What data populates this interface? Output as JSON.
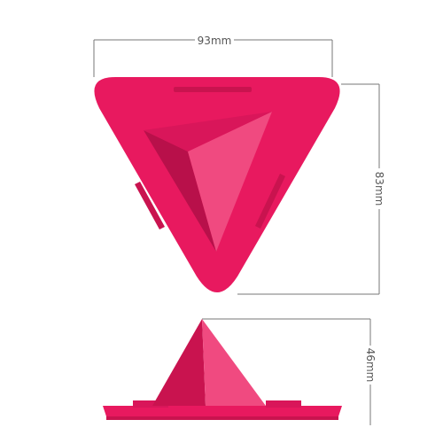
{
  "dimensions": {
    "width": "93mm",
    "height": "83mm",
    "depth": "46mm"
  },
  "colors": {
    "product": "#e8195f",
    "product_dark": "#b8104a",
    "product_light": "#f0457d",
    "dimension_line": "#777777"
  }
}
